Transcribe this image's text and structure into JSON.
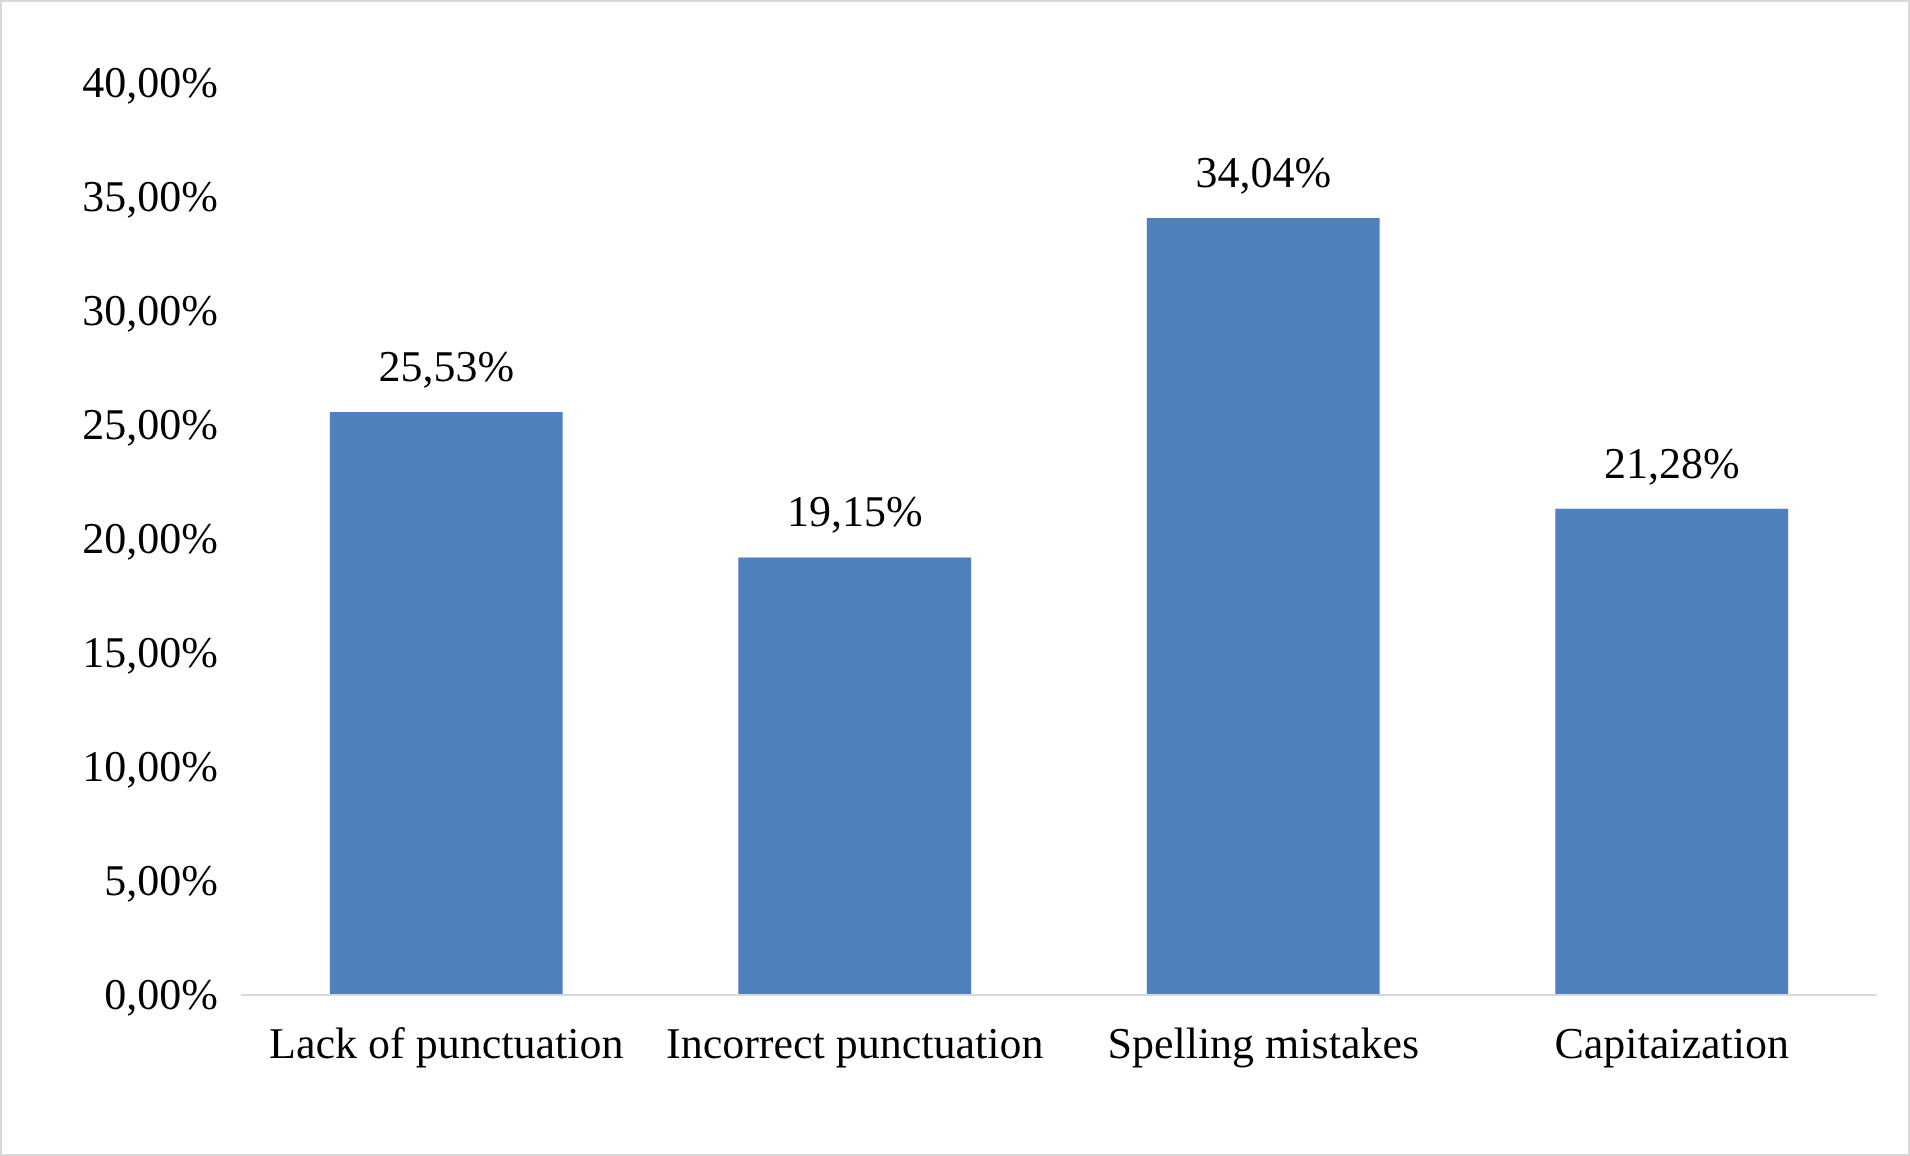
{
  "chart_data": {
    "type": "bar",
    "categories": [
      "Lack of punctuation",
      "Incorrect punctuation",
      "Spelling mistakes",
      "Capitaization"
    ],
    "values": [
      25.53,
      19.15,
      34.04,
      21.28
    ],
    "color": "#4f81bd",
    "value_labels": [
      "25,53%",
      "19,15%",
      "34,04%",
      "21,28%"
    ],
    "ylim": [
      0,
      40
    ],
    "yticks": [
      {
        "value": 0,
        "label": "0,00%"
      },
      {
        "value": 5,
        "label": "5,00%"
      },
      {
        "value": 10,
        "label": "10,00%"
      },
      {
        "value": 15,
        "label": "15,00%"
      },
      {
        "value": 20,
        "label": "20,00%"
      },
      {
        "value": 25,
        "label": "25,00%"
      },
      {
        "value": 30,
        "label": "30,00%"
      },
      {
        "value": 35,
        "label": "35,00%"
      },
      {
        "value": 40,
        "label": "40,00%"
      }
    ],
    "grid": false
  }
}
